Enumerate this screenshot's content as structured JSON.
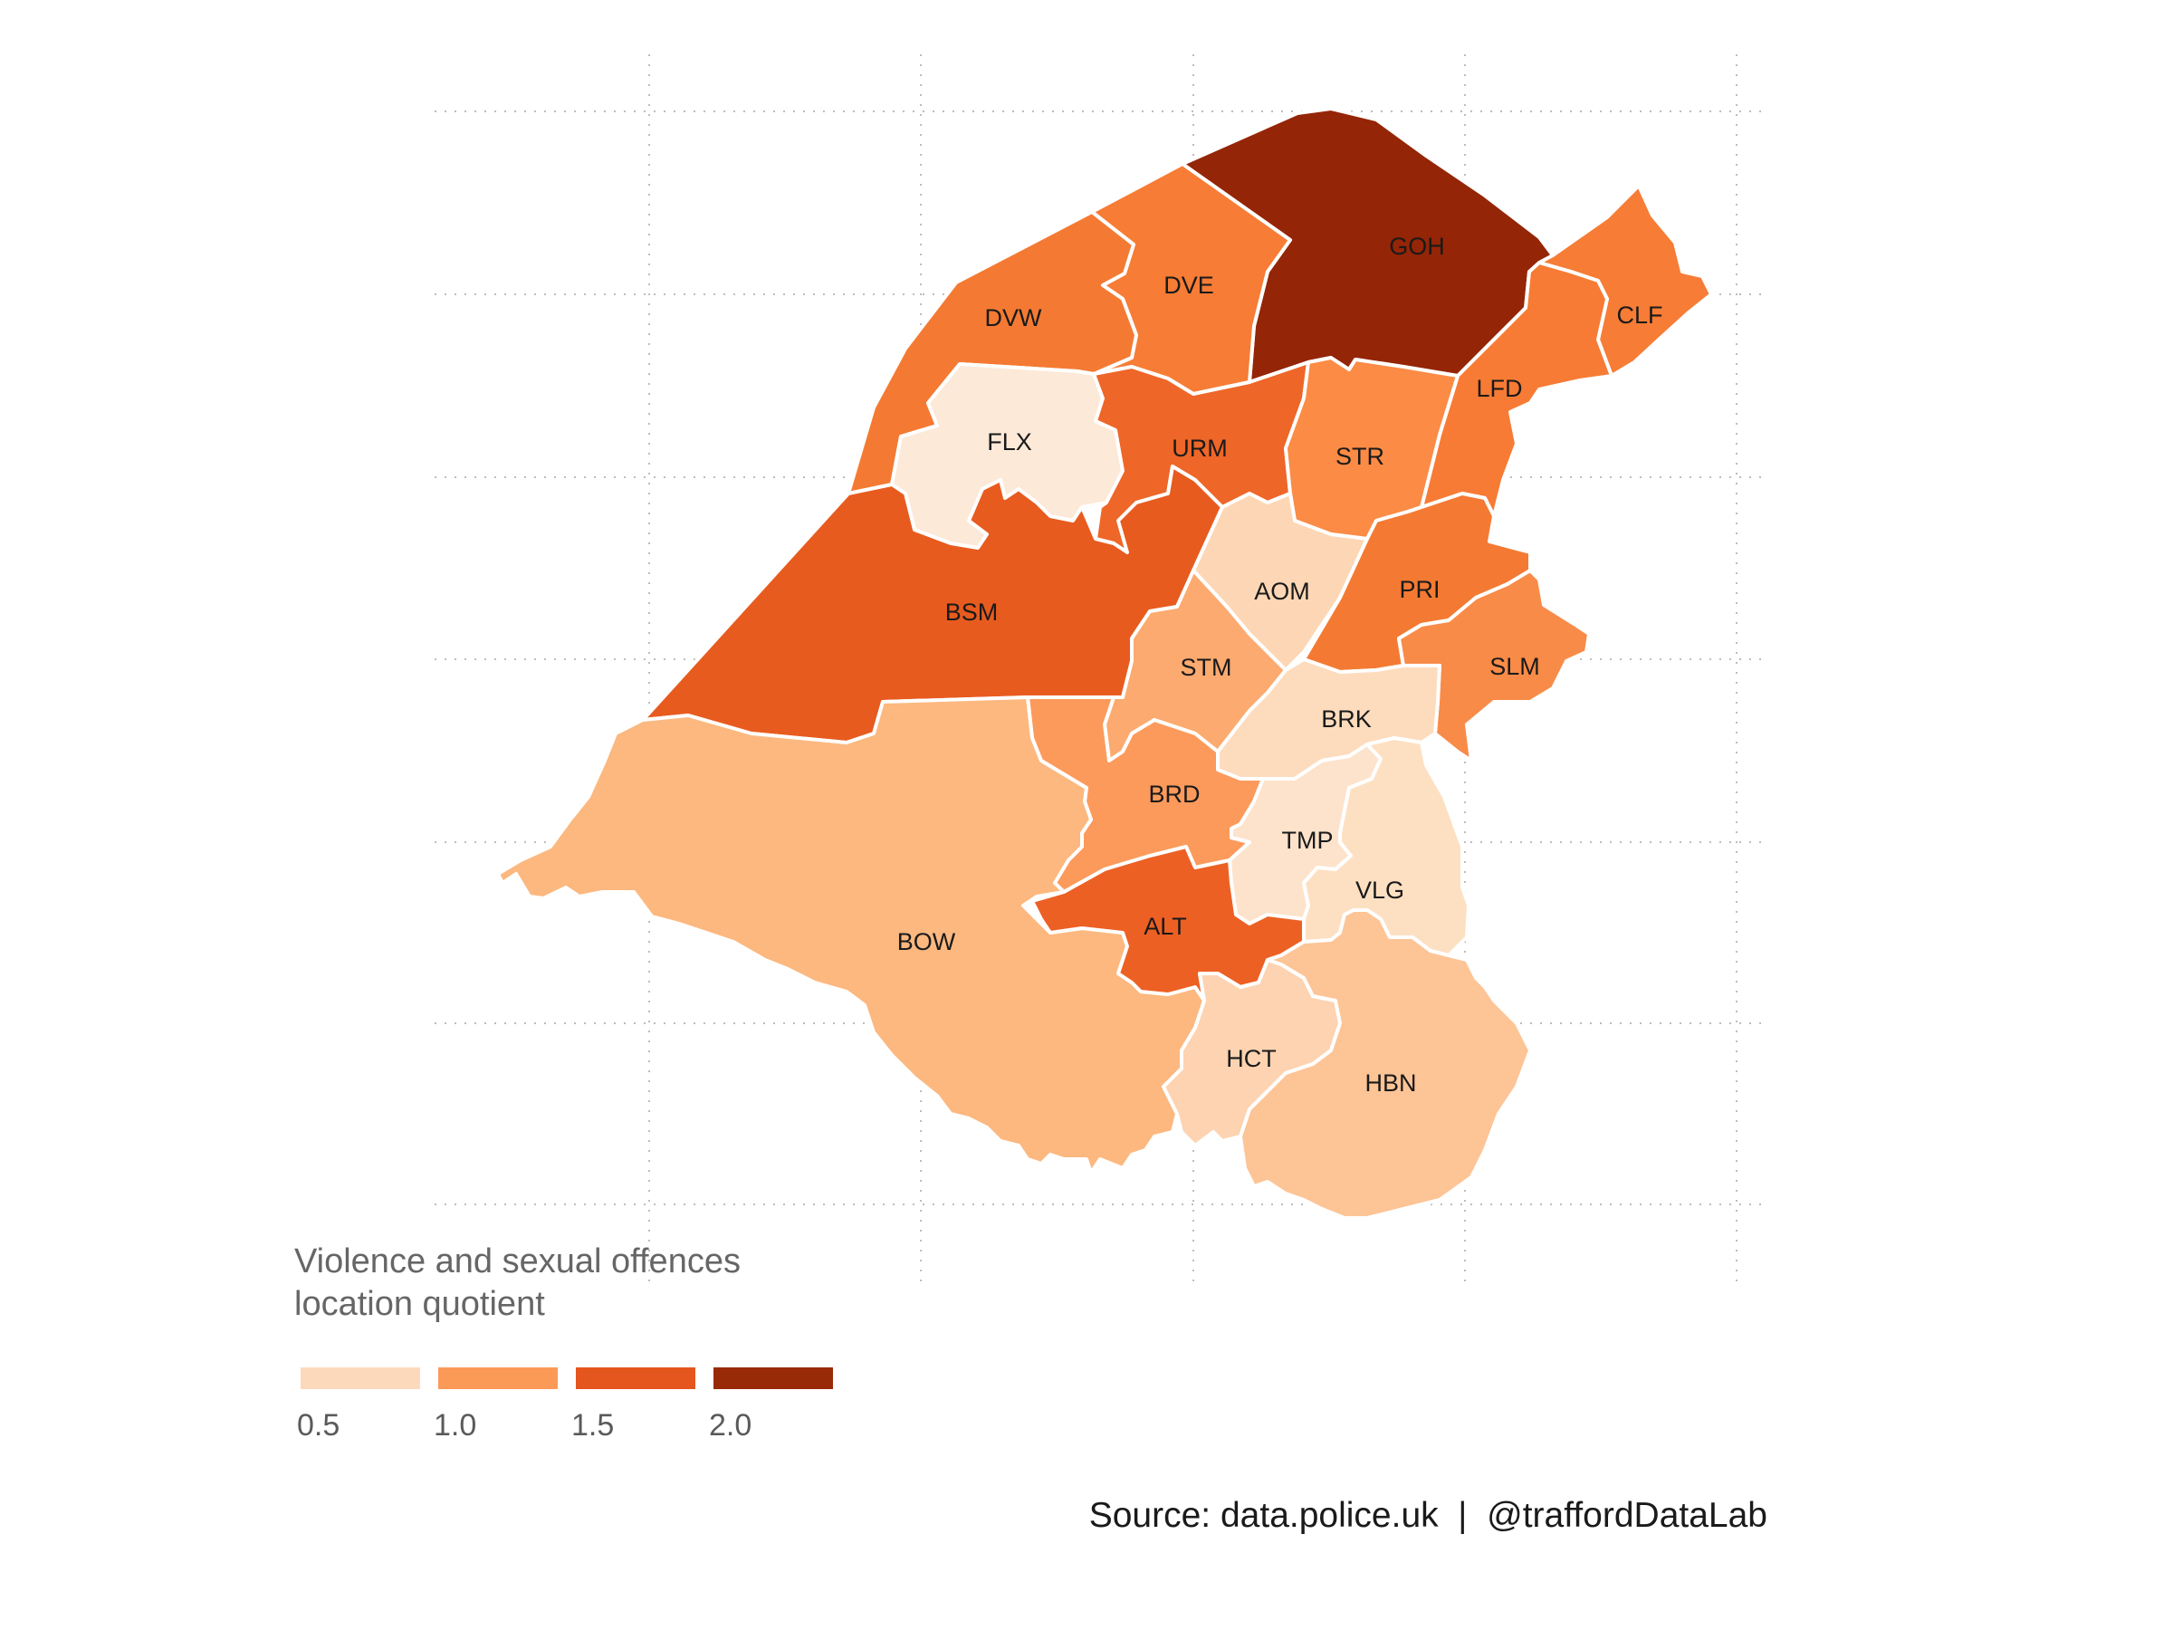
{
  "map": {
    "legend": {
      "title_line1": "Violence and sexual offences",
      "title_line2": "location quotient",
      "swatches": [
        {
          "color": "#fdd9bb",
          "value": 0.5
        },
        {
          "color": "#fb9a57",
          "value": 1.0
        },
        {
          "color": "#e5561e",
          "value": 1.5
        },
        {
          "color": "#992a08",
          "value": 2.0
        }
      ],
      "ticks": [
        "0.5",
        "1.0",
        "1.5",
        "2.0"
      ]
    },
    "wards": [
      {
        "code": "GOH",
        "color": "#942506"
      },
      {
        "code": "DVE",
        "color": "#f77c35"
      },
      {
        "code": "DVW",
        "color": "#f47a33"
      },
      {
        "code": "CLF",
        "color": "#f77c35"
      },
      {
        "code": "LFD",
        "color": "#f77b34"
      },
      {
        "code": "FLX",
        "color": "#fde9d8"
      },
      {
        "code": "URM",
        "color": "#ee6628"
      },
      {
        "code": "STR",
        "color": "#fb8b45"
      },
      {
        "code": "BSM",
        "color": "#e85b1f"
      },
      {
        "code": "AOM",
        "color": "#fdd7b5"
      },
      {
        "code": "PRI",
        "color": "#f47a33"
      },
      {
        "code": "STM",
        "color": "#fcaa6f"
      },
      {
        "code": "SLM",
        "color": "#f88b48"
      },
      {
        "code": "BRK",
        "color": "#fddcbe"
      },
      {
        "code": "BRD",
        "color": "#fc9a5b"
      },
      {
        "code": "TMP",
        "color": "#fde3cb"
      },
      {
        "code": "VLG",
        "color": "#fde0c2"
      },
      {
        "code": "BOW",
        "color": "#fcb87f"
      },
      {
        "code": "ALT",
        "color": "#ed6024"
      },
      {
        "code": "HCT",
        "color": "#fdd3b1"
      },
      {
        "code": "HBN",
        "color": "#fdc496"
      }
    ]
  },
  "caption": "Source: data.police.uk  |  @traffordDataLab"
}
